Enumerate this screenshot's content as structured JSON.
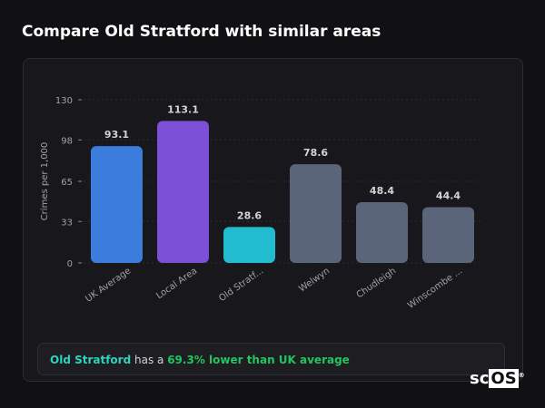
{
  "header": {
    "title": "Compare Old Stratford with similar areas"
  },
  "chart_data": {
    "type": "bar",
    "ylabel": "Crimes per 1,000",
    "xlabel": "",
    "ylim": [
      0,
      130
    ],
    "yticks": [
      0,
      33,
      65,
      98,
      130
    ],
    "grid": true,
    "categories": [
      "UK Average",
      "Local Area",
      "Old Stratf...",
      "Welwyn",
      "Chudleigh",
      "Winscombe ..."
    ],
    "values": [
      93.1,
      113.1,
      28.6,
      78.6,
      48.4,
      44.4
    ],
    "value_labels": [
      "93.1",
      "113.1",
      "28.6",
      "78.6",
      "48.4",
      "44.4"
    ],
    "colors": [
      "#3b7ddd",
      "#7b4fd6",
      "#22bcd0",
      "#5a6579",
      "#5a6579",
      "#5a6579"
    ]
  },
  "summary": {
    "place": "Old Stratford",
    "middle": " has a ",
    "comparison": "69.3% lower than UK average"
  },
  "logo": {
    "text_a": "sc",
    "text_b": "OS",
    "mark": "®"
  }
}
